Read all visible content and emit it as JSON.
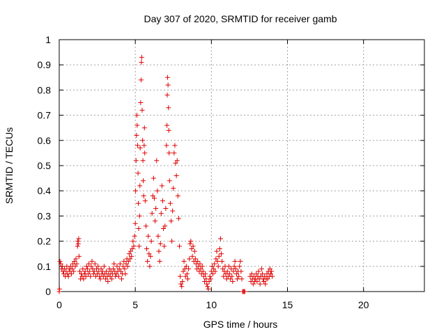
{
  "chart_data": {
    "type": "scatter",
    "title": "Day 307 of 2020, SRMTID for receiver gamb",
    "xlabel": "GPS time / hours",
    "ylabel": "SRMTID / TECUs",
    "xlim": [
      0,
      24
    ],
    "ylim": [
      0,
      1
    ],
    "xticks": [
      0,
      5,
      10,
      15,
      20
    ],
    "yticks": [
      0,
      0.1,
      0.2,
      0.3,
      0.4,
      0.5,
      0.6,
      0.7,
      0.8,
      0.9,
      1
    ],
    "xtick_labels": [
      "0",
      "5",
      "10",
      "15",
      "20"
    ],
    "ytick_labels": [
      "0",
      "0.1",
      "0.2",
      "0.3",
      "0.4",
      "0.5",
      "0.6",
      "0.7",
      "0.8",
      "0.9",
      "1"
    ],
    "grid": true,
    "marker": "+",
    "color": "#e00000",
    "series": [
      {
        "name": "SRMTID",
        "points": [
          [
            0.0,
            0.0
          ],
          [
            0.02,
            0.01
          ],
          [
            0.05,
            0.12
          ],
          [
            0.1,
            0.11
          ],
          [
            0.15,
            0.09
          ],
          [
            0.2,
            0.1
          ],
          [
            0.25,
            0.08
          ],
          [
            0.3,
            0.07
          ],
          [
            0.35,
            0.09
          ],
          [
            0.4,
            0.06
          ],
          [
            0.45,
            0.08
          ],
          [
            0.5,
            0.1
          ],
          [
            0.55,
            0.07
          ],
          [
            0.6,
            0.06
          ],
          [
            0.65,
            0.09
          ],
          [
            0.7,
            0.08
          ],
          [
            0.75,
            0.1
          ],
          [
            0.8,
            0.07
          ],
          [
            0.85,
            0.09
          ],
          [
            0.9,
            0.11
          ],
          [
            0.95,
            0.08
          ],
          [
            1.0,
            0.12
          ],
          [
            1.05,
            0.1
          ],
          [
            1.1,
            0.13
          ],
          [
            1.15,
            0.11
          ],
          [
            1.2,
            0.18
          ],
          [
            1.22,
            0.2
          ],
          [
            1.25,
            0.19
          ],
          [
            1.28,
            0.21
          ],
          [
            1.3,
            0.14
          ],
          [
            1.35,
            0.08
          ],
          [
            1.4,
            0.05
          ],
          [
            1.45,
            0.07
          ],
          [
            1.5,
            0.06
          ],
          [
            1.55,
            0.09
          ],
          [
            1.6,
            0.05
          ],
          [
            1.65,
            0.07
          ],
          [
            1.7,
            0.08
          ],
          [
            1.75,
            0.06
          ],
          [
            1.8,
            0.1
          ],
          [
            1.85,
            0.09
          ],
          [
            1.9,
            0.07
          ],
          [
            1.95,
            0.11
          ],
          [
            2.0,
            0.08
          ],
          [
            2.05,
            0.06
          ],
          [
            2.1,
            0.1
          ],
          [
            2.15,
            0.12
          ],
          [
            2.2,
            0.09
          ],
          [
            2.25,
            0.07
          ],
          [
            2.3,
            0.08
          ],
          [
            2.35,
            0.11
          ],
          [
            2.4,
            0.06
          ],
          [
            2.45,
            0.09
          ],
          [
            2.5,
            0.07
          ],
          [
            2.55,
            0.1
          ],
          [
            2.6,
            0.08
          ],
          [
            2.65,
            0.06
          ],
          [
            2.7,
            0.05
          ],
          [
            2.75,
            0.09
          ],
          [
            2.8,
            0.07
          ],
          [
            2.85,
            0.08
          ],
          [
            2.9,
            0.06
          ],
          [
            2.95,
            0.1
          ],
          [
            3.0,
            0.07
          ],
          [
            3.05,
            0.05
          ],
          [
            3.1,
            0.08
          ],
          [
            3.15,
            0.06
          ],
          [
            3.2,
            0.04
          ],
          [
            3.25,
            0.07
          ],
          [
            3.3,
            0.09
          ],
          [
            3.35,
            0.06
          ],
          [
            3.4,
            0.08
          ],
          [
            3.45,
            0.05
          ],
          [
            3.5,
            0.07
          ],
          [
            3.55,
            0.09
          ],
          [
            3.6,
            0.11
          ],
          [
            3.65,
            0.08
          ],
          [
            3.7,
            0.06
          ],
          [
            3.75,
            0.07
          ],
          [
            3.8,
            0.1
          ],
          [
            3.85,
            0.08
          ],
          [
            3.9,
            0.06
          ],
          [
            3.95,
            0.09
          ],
          [
            4.0,
            0.11
          ],
          [
            4.05,
            0.08
          ],
          [
            4.1,
            0.05
          ],
          [
            4.15,
            0.07
          ],
          [
            4.2,
            0.1
          ],
          [
            4.25,
            0.12
          ],
          [
            4.3,
            0.09
          ],
          [
            4.35,
            0.07
          ],
          [
            4.4,
            0.11
          ],
          [
            4.45,
            0.13
          ],
          [
            4.5,
            0.1
          ],
          [
            4.55,
            0.12
          ],
          [
            4.6,
            0.15
          ],
          [
            4.65,
            0.13
          ],
          [
            4.7,
            0.16
          ],
          [
            4.75,
            0.14
          ],
          [
            4.8,
            0.17
          ],
          [
            4.85,
            0.2
          ],
          [
            4.9,
            0.18
          ],
          [
            4.95,
            0.22
          ],
          [
            5.0,
            0.27
          ],
          [
            5.02,
            0.4
          ],
          [
            5.05,
            0.52
          ],
          [
            5.08,
            0.62
          ],
          [
            5.1,
            0.7
          ],
          [
            5.12,
            0.66
          ],
          [
            5.15,
            0.58
          ],
          [
            5.18,
            0.47
          ],
          [
            5.2,
            0.35
          ],
          [
            5.22,
            0.25
          ],
          [
            5.25,
            0.18
          ],
          [
            5.28,
            0.3
          ],
          [
            5.3,
            0.42
          ],
          [
            5.32,
            0.57
          ],
          [
            5.35,
            0.75
          ],
          [
            5.38,
            0.84
          ],
          [
            5.4,
            0.91
          ],
          [
            5.42,
            0.93
          ],
          [
            5.45,
            0.72
          ],
          [
            5.48,
            0.6
          ],
          [
            5.5,
            0.52
          ],
          [
            5.52,
            0.44
          ],
          [
            5.55,
            0.38
          ],
          [
            5.58,
            0.58
          ],
          [
            5.6,
            0.65
          ],
          [
            5.62,
            0.55
          ],
          [
            5.65,
            0.36
          ],
          [
            5.7,
            0.26
          ],
          [
            5.75,
            0.17
          ],
          [
            5.8,
            0.12
          ],
          [
            5.85,
            0.22
          ],
          [
            5.9,
            0.15
          ],
          [
            5.95,
            0.1
          ],
          [
            6.0,
            0.14
          ],
          [
            6.05,
            0.2
          ],
          [
            6.1,
            0.31
          ],
          [
            6.15,
            0.38
          ],
          [
            6.2,
            0.45
          ],
          [
            6.25,
            0.37
          ],
          [
            6.3,
            0.28
          ],
          [
            6.35,
            0.33
          ],
          [
            6.4,
            0.52
          ],
          [
            6.45,
            0.4
          ],
          [
            6.5,
            0.22
          ],
          [
            6.55,
            0.16
          ],
          [
            6.6,
            0.12
          ],
          [
            6.65,
            0.19
          ],
          [
            6.7,
            0.31
          ],
          [
            6.75,
            0.42
          ],
          [
            6.8,
            0.36
          ],
          [
            6.85,
            0.25
          ],
          [
            6.9,
            0.18
          ],
          [
            6.95,
            0.26
          ],
          [
            7.0,
            0.33
          ],
          [
            7.05,
            0.58
          ],
          [
            7.08,
            0.66
          ],
          [
            7.1,
            0.78
          ],
          [
            7.12,
            0.85
          ],
          [
            7.15,
            0.82
          ],
          [
            7.18,
            0.73
          ],
          [
            7.2,
            0.64
          ],
          [
            7.22,
            0.55
          ],
          [
            7.25,
            0.44
          ],
          [
            7.3,
            0.35
          ],
          [
            7.35,
            0.28
          ],
          [
            7.4,
            0.2
          ],
          [
            7.45,
            0.32
          ],
          [
            7.5,
            0.41
          ],
          [
            7.55,
            0.55
          ],
          [
            7.6,
            0.58
          ],
          [
            7.65,
            0.51
          ],
          [
            7.7,
            0.46
          ],
          [
            7.75,
            0.52
          ],
          [
            7.8,
            0.38
          ],
          [
            7.85,
            0.29
          ],
          [
            7.9,
            0.18
          ],
          [
            7.95,
            0.06
          ],
          [
            8.0,
            0.03
          ],
          [
            8.05,
            0.02
          ],
          [
            8.1,
            0.04
          ],
          [
            8.15,
            0.08
          ],
          [
            8.2,
            0.12
          ],
          [
            8.25,
            0.09
          ],
          [
            8.3,
            0.06
          ],
          [
            8.35,
            0.1
          ],
          [
            8.4,
            0.07
          ],
          [
            8.45,
            0.05
          ],
          [
            8.5,
            0.09
          ],
          [
            8.55,
            0.13
          ],
          [
            8.6,
            0.19
          ],
          [
            8.65,
            0.2
          ],
          [
            8.7,
            0.17
          ],
          [
            8.75,
            0.14
          ],
          [
            8.8,
            0.18
          ],
          [
            8.85,
            0.12
          ],
          [
            8.9,
            0.16
          ],
          [
            8.95,
            0.13
          ],
          [
            9.0,
            0.11
          ],
          [
            9.05,
            0.09
          ],
          [
            9.1,
            0.12
          ],
          [
            9.15,
            0.1
          ],
          [
            9.2,
            0.08
          ],
          [
            9.25,
            0.11
          ],
          [
            9.3,
            0.09
          ],
          [
            9.35,
            0.07
          ],
          [
            9.4,
            0.1
          ],
          [
            9.45,
            0.08
          ],
          [
            9.5,
            0.06
          ],
          [
            9.55,
            0.04
          ],
          [
            9.6,
            0.07
          ],
          [
            9.65,
            0.05
          ],
          [
            9.7,
            0.03
          ],
          [
            9.75,
            0.02
          ],
          [
            9.8,
            0.01
          ],
          [
            9.85,
            0.04
          ],
          [
            9.9,
            0.06
          ],
          [
            9.95,
            0.05
          ],
          [
            10.0,
            0.08
          ],
          [
            10.05,
            0.1
          ],
          [
            10.1,
            0.07
          ],
          [
            10.15,
            0.09
          ],
          [
            10.2,
            0.11
          ],
          [
            10.25,
            0.08
          ],
          [
            10.3,
            0.13
          ],
          [
            10.35,
            0.16
          ],
          [
            10.4,
            0.12
          ],
          [
            10.45,
            0.1
          ],
          [
            10.5,
            0.14
          ],
          [
            10.55,
            0.17
          ],
          [
            10.6,
            0.21
          ],
          [
            10.65,
            0.15
          ],
          [
            10.7,
            0.12
          ],
          [
            10.75,
            0.09
          ],
          [
            10.8,
            0.06
          ],
          [
            10.85,
            0.08
          ],
          [
            10.9,
            0.1
          ],
          [
            10.95,
            0.07
          ],
          [
            11.0,
            0.05
          ],
          [
            11.05,
            0.08
          ],
          [
            11.1,
            0.06
          ],
          [
            11.15,
            0.1
          ],
          [
            11.2,
            0.07
          ],
          [
            11.25,
            0.05
          ],
          [
            11.3,
            0.09
          ],
          [
            11.35,
            0.06
          ],
          [
            11.4,
            0.04
          ],
          [
            11.45,
            0.08
          ],
          [
            11.5,
            0.1
          ],
          [
            11.55,
            0.12
          ],
          [
            11.6,
            0.09
          ],
          [
            11.65,
            0.07
          ],
          [
            11.7,
            0.05
          ],
          [
            11.75,
            0.08
          ],
          [
            11.8,
            0.06
          ],
          [
            11.85,
            0.1
          ],
          [
            11.9,
            0.12
          ],
          [
            11.95,
            0.08
          ],
          [
            12.0,
            0.05
          ],
          [
            12.05,
            0.0
          ],
          [
            12.1,
            0.0
          ],
          [
            12.15,
            0.0
          ],
          [
            12.2,
            0.0
          ],
          [
            12.55,
            0.06
          ],
          [
            12.6,
            0.04
          ],
          [
            12.65,
            0.07
          ],
          [
            12.7,
            0.05
          ],
          [
            12.75,
            0.03
          ],
          [
            12.8,
            0.06
          ],
          [
            12.85,
            0.04
          ],
          [
            12.9,
            0.05
          ],
          [
            12.95,
            0.07
          ],
          [
            13.0,
            0.04
          ],
          [
            13.05,
            0.06
          ],
          [
            13.1,
            0.08
          ],
          [
            13.15,
            0.05
          ],
          [
            13.2,
            0.03
          ],
          [
            13.25,
            0.06
          ],
          [
            13.3,
            0.09
          ],
          [
            13.35,
            0.07
          ],
          [
            13.4,
            0.05
          ],
          [
            13.45,
            0.04
          ],
          [
            13.5,
            0.06
          ],
          [
            13.55,
            0.03
          ],
          [
            13.6,
            0.05
          ],
          [
            13.65,
            0.07
          ],
          [
            13.7,
            0.05
          ],
          [
            13.75,
            0.08
          ],
          [
            13.8,
            0.06
          ],
          [
            13.85,
            0.09
          ],
          [
            13.9,
            0.07
          ],
          [
            13.95,
            0.08
          ],
          [
            14.0,
            0.06
          ]
        ]
      }
    ]
  }
}
